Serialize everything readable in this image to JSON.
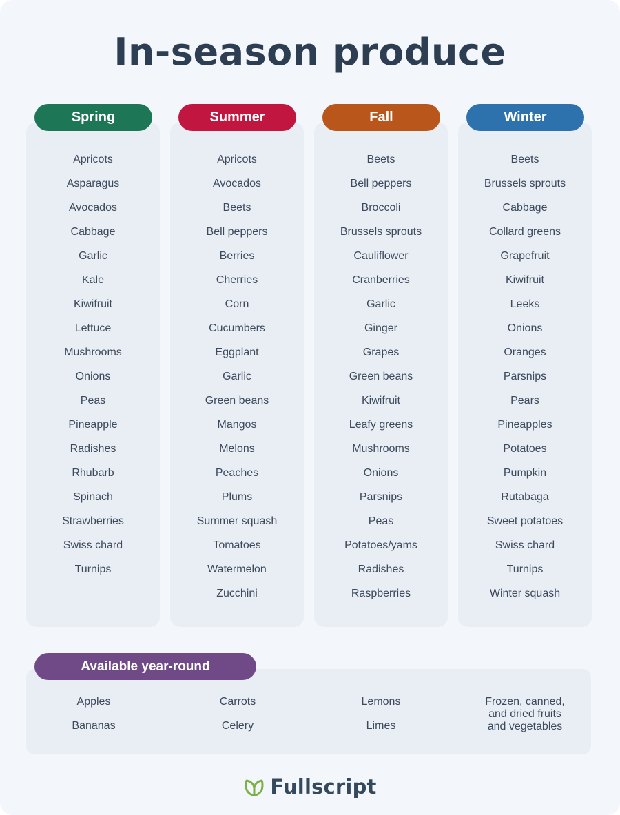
{
  "title": "In-season produce",
  "seasons": [
    {
      "name": "Spring",
      "color": "#1d7656",
      "items": [
        "Apricots",
        "Asparagus",
        "Avocados",
        "Cabbage",
        "Garlic",
        "Kale",
        "Kiwifruit",
        "Lettuce",
        "Mushrooms",
        "Onions",
        "Peas",
        "Pineapple",
        "Radishes",
        "Rhubarb",
        "Spinach",
        "Strawberries",
        "Swiss chard",
        "Turnips"
      ]
    },
    {
      "name": "Summer",
      "color": "#c0163f",
      "items": [
        "Apricots",
        "Avocados",
        "Beets",
        "Bell peppers",
        "Berries",
        "Cherries",
        "Corn",
        "Cucumbers",
        "Eggplant",
        "Garlic",
        "Green beans",
        "Mangos",
        "Melons",
        "Peaches",
        "Plums",
        "Summer squash",
        "Tomatoes",
        "Watermelon",
        "Zucchini"
      ]
    },
    {
      "name": "Fall",
      "color": "#b8561c",
      "items": [
        "Beets",
        "Bell peppers",
        "Broccoli",
        "Brussels sprouts",
        "Cauliflower",
        "Cranberries",
        "Garlic",
        "Ginger",
        "Grapes",
        "Green beans",
        "Kiwifruit",
        "Leafy greens",
        "Mushrooms",
        "Onions",
        "Parsnips",
        "Peas",
        "Potatoes/yams",
        "Radishes",
        "Raspberries"
      ]
    },
    {
      "name": "Winter",
      "color": "#2e72ad",
      "items": [
        "Beets",
        "Brussels sprouts",
        "Cabbage",
        "Collard greens",
        "Grapefruit",
        "Kiwifruit",
        "Leeks",
        "Onions",
        "Oranges",
        "Parsnips",
        "Pears",
        "Pineapples",
        "Potatoes",
        "Pumpkin",
        "Rutabaga",
        "Sweet potatoes",
        "Swiss chard",
        "Turnips",
        "Winter squash"
      ]
    }
  ],
  "year_round": {
    "label": "Available year-round",
    "color": "#704a86",
    "columns": [
      [
        "Apples",
        "Bananas"
      ],
      [
        "Carrots",
        "Celery"
      ],
      [
        "Lemons",
        "Limes"
      ]
    ],
    "extra_lines": [
      "Frozen, canned,",
      "and dried fruits",
      "and vegetables"
    ]
  },
  "brand": {
    "name": "Fullscript",
    "icon": "leaf-logo-icon",
    "icon_color": "#7bb045"
  }
}
